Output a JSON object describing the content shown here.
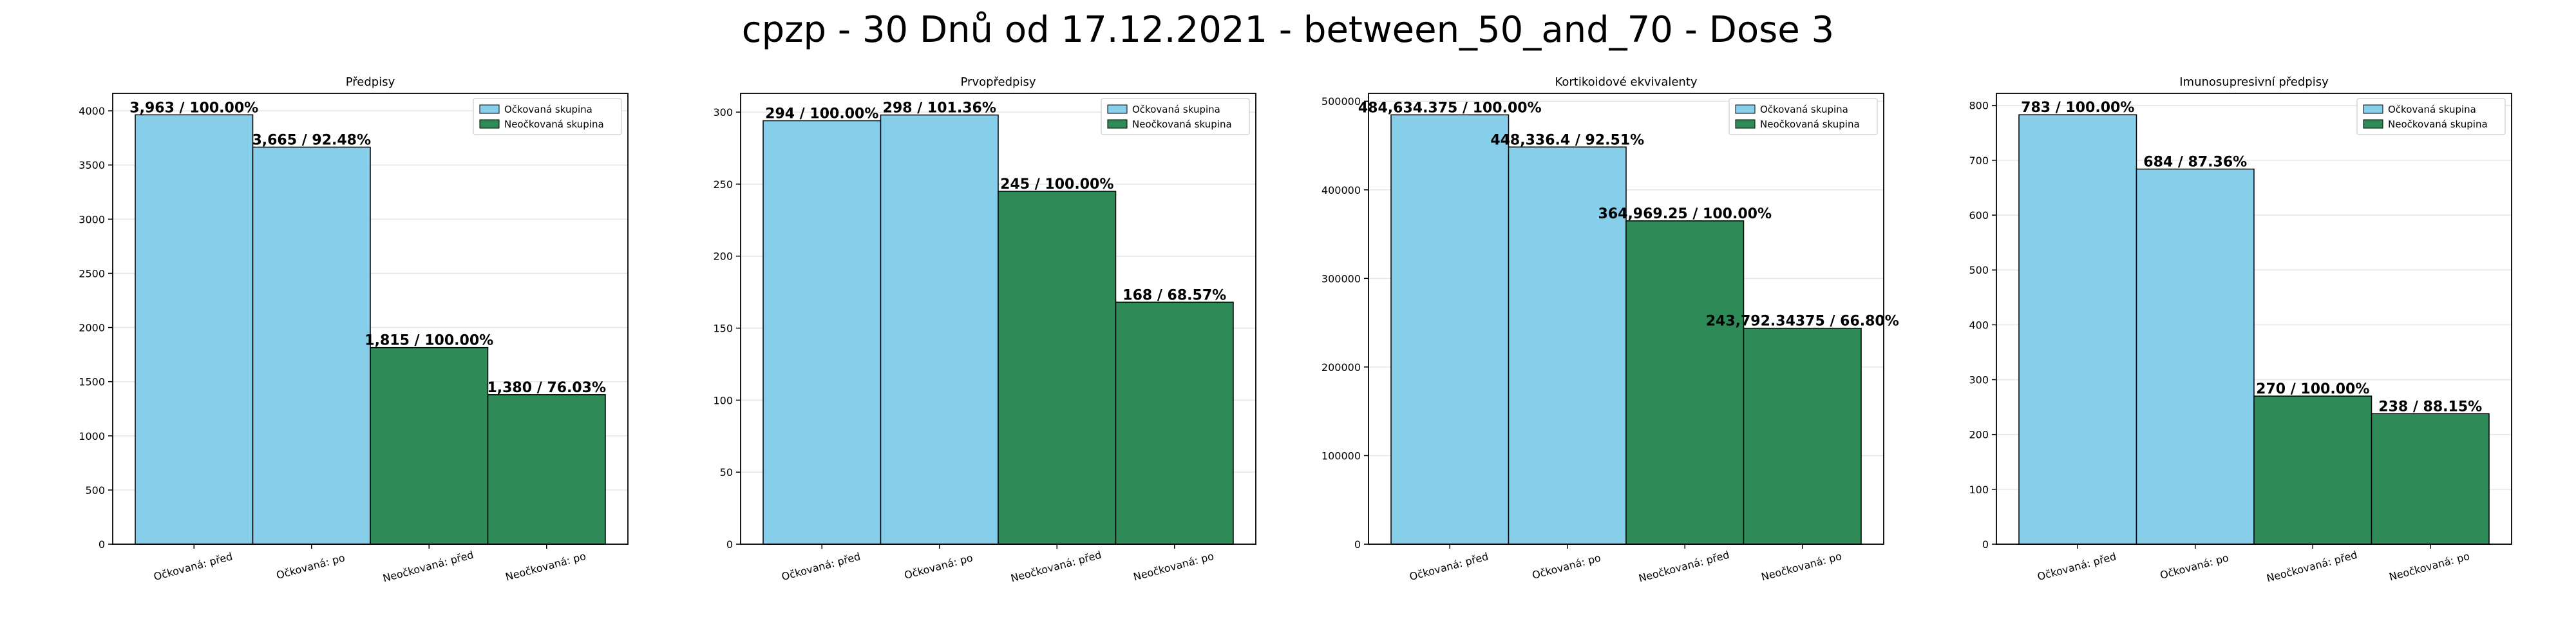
{
  "figure": {
    "title": "cpzp - 30 Dnů od 17.12.2021 - between_50_and_70 - Dose 3"
  },
  "legend_labels": [
    "Očkovaná skupina",
    "Neočkovaná skupina"
  ],
  "colors": {
    "vaccinated": "#87ceeb",
    "unvaccinated": "#2e8b57"
  },
  "chart_data": [
    {
      "type": "bar",
      "title": "Předpisy",
      "categories": [
        "Očkovaná: před",
        "Očkovaná: po",
        "Neočkovaná: před",
        "Neočkovaná: po"
      ],
      "values": [
        3963,
        3665,
        1815,
        1380
      ],
      "bar_labels": [
        "3,963 / 100.00%",
        "3,665 / 92.48%",
        "1,815 / 100.00%",
        "1,380 / 76.03%"
      ],
      "groups": [
        "Očkovaná skupina",
        "Očkovaná skupina",
        "Neočkovaná skupina",
        "Neočkovaná skupina"
      ],
      "ylim": [
        0,
        4161
      ],
      "yticks": [
        0,
        500,
        1000,
        1500,
        2000,
        2500,
        3000,
        3500,
        4000
      ],
      "ytick_labels": [
        "0",
        "500",
        "1000",
        "1500",
        "2000",
        "2500",
        "3000",
        "3500",
        "4000"
      ],
      "legend": "top-right",
      "grid": true
    },
    {
      "type": "bar",
      "title": "Prvopředpisy",
      "categories": [
        "Očkovaná: před",
        "Očkovaná: po",
        "Neočkovaná: před",
        "Neočkovaná: po"
      ],
      "values": [
        294,
        298,
        245,
        168
      ],
      "bar_labels": [
        "294 / 100.00%",
        "298 / 101.36%",
        "245 / 100.00%",
        "168 / 68.57%"
      ],
      "groups": [
        "Očkovaná skupina",
        "Očkovaná skupina",
        "Neočkovaná skupina",
        "Neočkovaná skupina"
      ],
      "ylim": [
        0,
        313
      ],
      "yticks": [
        0,
        50,
        100,
        150,
        200,
        250,
        300
      ],
      "ytick_labels": [
        "0",
        "50",
        "100",
        "150",
        "200",
        "250",
        "300"
      ],
      "legend": "top-right",
      "grid": true
    },
    {
      "type": "bar",
      "title": "Kortikoidové ekvivalenty",
      "categories": [
        "Očkovaná: před",
        "Očkovaná: po",
        "Neočkovaná: před",
        "Neočkovaná: po"
      ],
      "values": [
        484634.375,
        448336.4,
        364969.25,
        243792.34375
      ],
      "bar_labels": [
        "484,634.375 / 100.00%",
        "448,336.4 / 92.51%",
        "364,969.25 / 100.00%",
        "243,792.34375 / 66.80%"
      ],
      "groups": [
        "Očkovaná skupina",
        "Očkovaná skupina",
        "Neočkovaná skupina",
        "Neočkovaná skupina"
      ],
      "ylim": [
        0,
        508866
      ],
      "yticks": [
        0,
        100000,
        200000,
        300000,
        400000,
        500000
      ],
      "ytick_labels": [
        "0",
        "100000",
        "200000",
        "300000",
        "400000",
        "500000"
      ],
      "legend": "top-right",
      "grid": true
    },
    {
      "type": "bar",
      "title": "Imunosupresivní předpisy",
      "categories": [
        "Očkovaná: před",
        "Očkovaná: po",
        "Neočkovaná: před",
        "Neočkovaná: po"
      ],
      "values": [
        783,
        684,
        270,
        238
      ],
      "bar_labels": [
        "783 / 100.00%",
        "684 / 87.36%",
        "270 / 100.00%",
        "238 / 88.15%"
      ],
      "groups": [
        "Očkovaná skupina",
        "Očkovaná skupina",
        "Neočkovaná skupina",
        "Neočkovaná skupina"
      ],
      "ylim": [
        0,
        822
      ],
      "yticks": [
        0,
        100,
        200,
        300,
        400,
        500,
        600,
        700,
        800
      ],
      "ytick_labels": [
        "0",
        "100",
        "200",
        "300",
        "400",
        "500",
        "600",
        "700",
        "800"
      ],
      "legend": "top-right",
      "grid": true
    }
  ]
}
